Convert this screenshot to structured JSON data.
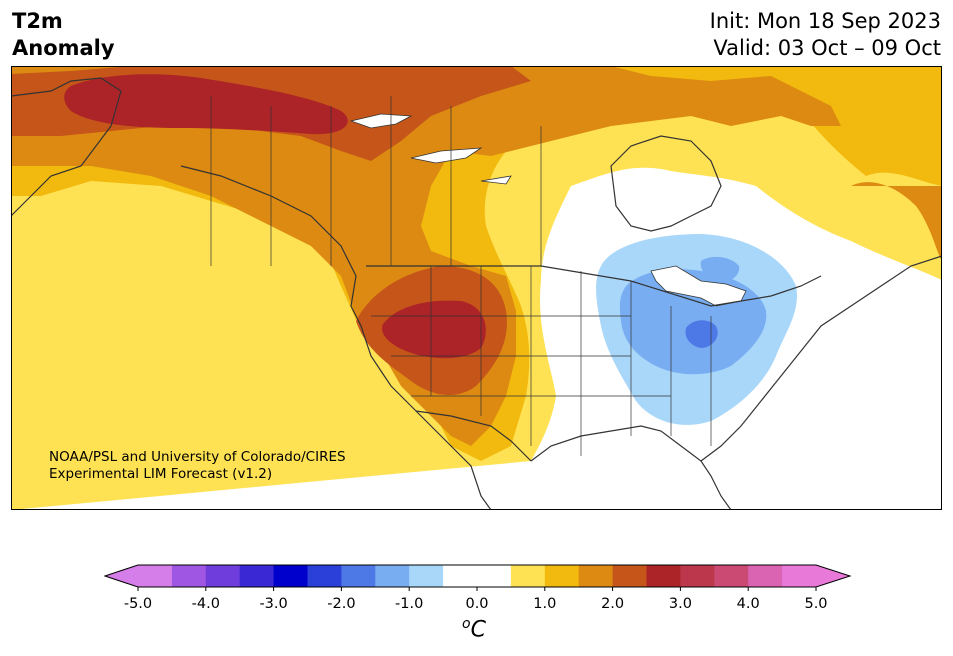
{
  "header": {
    "variable_line1": "T2m",
    "variable_line2": "Anomaly",
    "init_text": "Init: Mon 18 Sep 2023",
    "valid_text": "Valid: 03 Oct – 09 Oct"
  },
  "credit": {
    "line1": "NOAA/PSL and University of Colorado/CIRES",
    "line2": "Experimental LIM Forecast (v1.2)"
  },
  "colorbar": {
    "unit_prefix": "o",
    "unit_suffix": "C",
    "ticks": [
      "-5.0",
      "-4.0",
      "-3.0",
      "-2.0",
      "-1.0",
      "0.0",
      "1.0",
      "2.0",
      "3.0",
      "4.0",
      "5.0"
    ],
    "colors": [
      "#d57ee9",
      "#9f56e2",
      "#6f3ddc",
      "#3a28d5",
      "#0000cc",
      "#2a40d8",
      "#4d79e6",
      "#78aef1",
      "#a9d7fa",
      "#ffffff",
      "#ffffff",
      "#ffe253",
      "#f2b90e",
      "#dc8a12",
      "#c55518",
      "#ac2328",
      "#bd374c",
      "#cb4a74",
      "#db64b2",
      "#e879d9"
    ],
    "under_color": "#d57ee9",
    "over_color": "#e879d9"
  },
  "map": {
    "region": "North America",
    "land_color": "#ffffff",
    "border_color": "#333333",
    "anomaly_colors": {
      "warm_1": "#ffe253",
      "warm_2": "#f2b90e",
      "warm_3": "#dc8a12",
      "warm_4": "#c55518",
      "warm_5": "#ac2328",
      "cool_1": "#a9d7fa",
      "cool_2": "#78aef1",
      "cool_3": "#4d79e6"
    }
  }
}
